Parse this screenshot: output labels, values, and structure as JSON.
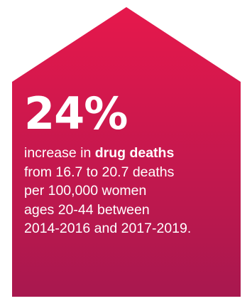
{
  "colors": {
    "gradient_top": "#e6184c",
    "gradient_bottom": "#a8184f",
    "text": "#ffffff"
  },
  "infographic": {
    "stat": "24%",
    "description": {
      "prefix": "increase in ",
      "highlight": "drug deaths",
      "line2": "from 16.7 to 20.7 deaths",
      "line3": "per 100,000 women",
      "line4": "ages 20-44 between",
      "line5": "2014-2016 and 2017-2019."
    }
  }
}
